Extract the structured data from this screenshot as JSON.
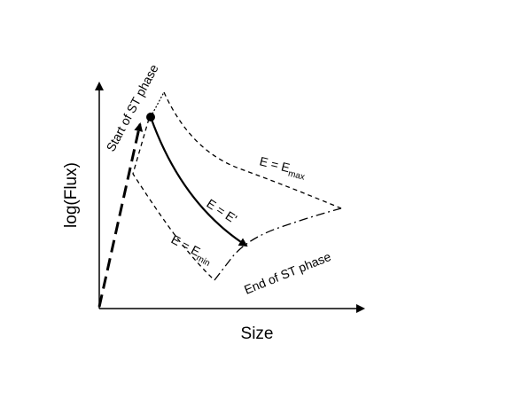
{
  "axes": {
    "y_label": "log(Flux)",
    "x_label": "Size"
  },
  "labels": {
    "start": "Start of ST phase",
    "end": "End of ST phase",
    "e_max": {
      "text": "E = E",
      "sub": "max"
    },
    "e_prime": "E = E'",
    "e_min": {
      "text": "E = E",
      "sub": "min"
    }
  }
}
